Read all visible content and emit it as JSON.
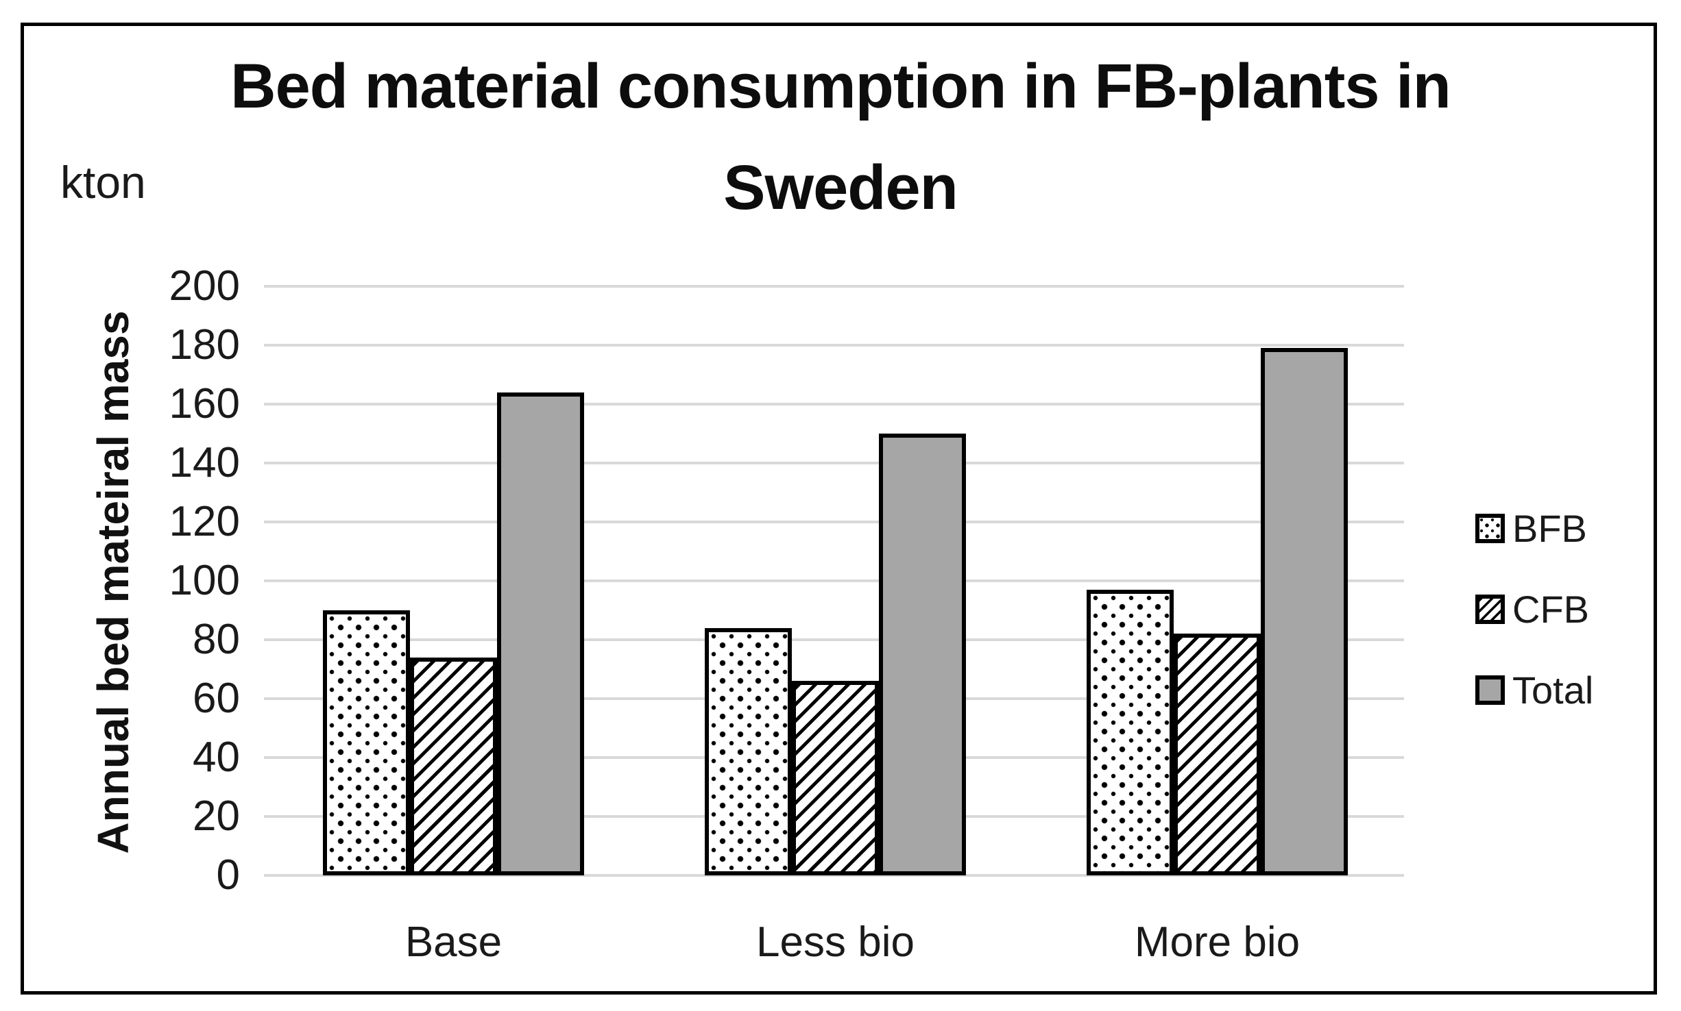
{
  "figure": {
    "title_line1": "Bed material consumption in FB-plants in",
    "title_line2": "Sweden",
    "unit_label": "kton"
  },
  "chart_data": {
    "type": "bar",
    "title": "Bed material consumption in FB-plants in Sweden",
    "y_unit_label": "kton",
    "ylabel": "Annual bed mateiral mass",
    "xlabel": "",
    "ylim": [
      0,
      200
    ],
    "ytick_step": 20,
    "yticks": [
      0,
      20,
      40,
      60,
      80,
      100,
      120,
      140,
      160,
      180,
      200
    ],
    "categories": [
      "Base",
      "Less bio",
      "More bio"
    ],
    "series": [
      {
        "name": "BFB",
        "pattern": "dotted",
        "values": [
          90,
          84,
          97
        ]
      },
      {
        "name": "CFB",
        "pattern": "diagonal-hatch",
        "values": [
          74,
          66,
          82
        ]
      },
      {
        "name": "Total",
        "pattern": "solid",
        "fill": "#a6a6a6",
        "values": [
          164,
          150,
          179
        ]
      }
    ],
    "legend": [
      "BFB",
      "CFB",
      "Total"
    ],
    "legend_position": "right",
    "grid": true,
    "colors": {
      "bar_border": "#000000",
      "total_fill": "#a6a6a6",
      "gridline": "#d9d9d9",
      "text": "#1a1a1a",
      "figure_border": "#000000"
    }
  }
}
